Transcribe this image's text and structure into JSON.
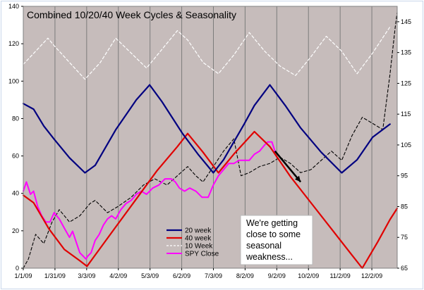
{
  "chart_data": {
    "type": "line",
    "title": "Combined 10/20/40 Week Cycles & Seasonality",
    "x_tick_labels": [
      "1/1/09",
      "1/31/09",
      "3/3/09",
      "4/2/09",
      "5/3/09",
      "6/2/09",
      "7/3/09",
      "8/2/09",
      "9/2/09",
      "10/2/09",
      "11/2/09",
      "12/2/09"
    ],
    "x_range_days": [
      0,
      364
    ],
    "y_left": {
      "min": 0,
      "max": 140,
      "ticks": [
        0,
        20,
        40,
        60,
        80,
        100,
        120,
        140
      ]
    },
    "y_right": {
      "min": 65,
      "max": 150,
      "ticks": [
        65,
        75,
        85,
        95,
        105,
        115,
        125,
        135,
        145
      ]
    },
    "series": [
      {
        "name": "20 week",
        "axis": "left",
        "color": "#000080",
        "style": "solid",
        "width": 2.2,
        "points": [
          [
            0,
            88
          ],
          [
            10,
            85
          ],
          [
            20,
            76
          ],
          [
            30,
            69
          ],
          [
            45,
            59
          ],
          [
            60,
            51
          ],
          [
            70,
            55
          ],
          [
            90,
            74
          ],
          [
            110,
            90
          ],
          [
            123,
            98
          ],
          [
            135,
            89
          ],
          [
            155,
            72
          ],
          [
            170,
            61
          ],
          [
            185,
            51
          ],
          [
            195,
            58
          ],
          [
            215,
            77
          ],
          [
            225,
            87
          ],
          [
            240,
            98
          ],
          [
            255,
            87
          ],
          [
            270,
            75
          ],
          [
            290,
            62
          ],
          [
            310,
            51
          ],
          [
            325,
            58
          ],
          [
            340,
            70
          ],
          [
            357,
            77
          ]
        ]
      },
      {
        "name": "40 week",
        "axis": "left",
        "color": "#e00000",
        "style": "solid",
        "width": 2.2,
        "points": [
          [
            0,
            39
          ],
          [
            10,
            35
          ],
          [
            25,
            21
          ],
          [
            40,
            10
          ],
          [
            55,
            4
          ],
          [
            62,
            1
          ],
          [
            70,
            7
          ],
          [
            90,
            22
          ],
          [
            110,
            37
          ],
          [
            130,
            52
          ],
          [
            150,
            65
          ],
          [
            160,
            72
          ],
          [
            175,
            62
          ],
          [
            190,
            51
          ],
          [
            205,
            61
          ],
          [
            225,
            73
          ],
          [
            240,
            65
          ],
          [
            260,
            49
          ],
          [
            280,
            35
          ],
          [
            300,
            21
          ],
          [
            320,
            7
          ],
          [
            330,
            0
          ],
          [
            345,
            14
          ],
          [
            357,
            26
          ],
          [
            364,
            32
          ]
        ]
      },
      {
        "name": "10 Week",
        "axis": "left",
        "color": "#ffffff",
        "style": "dashed",
        "width": 1.2,
        "points": [
          [
            0,
            109
          ],
          [
            12,
            116
          ],
          [
            24,
            123
          ],
          [
            30,
            119
          ],
          [
            45,
            110
          ],
          [
            60,
            101
          ],
          [
            75,
            110
          ],
          [
            90,
            123
          ],
          [
            105,
            115
          ],
          [
            120,
            107
          ],
          [
            135,
            117
          ],
          [
            150,
            127
          ],
          [
            160,
            122
          ],
          [
            175,
            110
          ],
          [
            190,
            104
          ],
          [
            205,
            114
          ],
          [
            220,
            126
          ],
          [
            235,
            116
          ],
          [
            250,
            108
          ],
          [
            265,
            103
          ],
          [
            280,
            113
          ],
          [
            295,
            124
          ],
          [
            310,
            116
          ],
          [
            325,
            104
          ],
          [
            340,
            115
          ],
          [
            357,
            129
          ]
        ]
      },
      {
        "name": "SPY Close",
        "axis": "right",
        "color": "#ff00ff",
        "style": "solid",
        "width": 2.0,
        "points": [
          [
            0,
            90
          ],
          [
            3,
            93
          ],
          [
            7,
            89
          ],
          [
            10,
            90
          ],
          [
            14,
            85
          ],
          [
            18,
            82
          ],
          [
            22,
            80
          ],
          [
            26,
            80
          ],
          [
            30,
            83
          ],
          [
            35,
            81
          ],
          [
            40,
            78
          ],
          [
            45,
            75
          ],
          [
            48,
            77
          ],
          [
            52,
            73
          ],
          [
            55,
            70
          ],
          [
            58,
            69
          ],
          [
            61,
            68
          ],
          [
            63,
            69
          ],
          [
            66,
            70
          ],
          [
            70,
            74
          ],
          [
            74,
            76
          ],
          [
            78,
            79
          ],
          [
            82,
            81
          ],
          [
            86,
            82
          ],
          [
            90,
            81
          ],
          [
            95,
            84
          ],
          [
            100,
            86
          ],
          [
            105,
            87
          ],
          [
            110,
            89
          ],
          [
            115,
            90
          ],
          [
            120,
            89
          ],
          [
            126,
            91
          ],
          [
            132,
            92
          ],
          [
            138,
            94
          ],
          [
            144,
            94
          ],
          [
            148,
            93
          ],
          [
            152,
            91
          ],
          [
            157,
            90
          ],
          [
            162,
            91
          ],
          [
            168,
            90
          ],
          [
            174,
            88
          ],
          [
            180,
            88
          ],
          [
            185,
            92
          ],
          [
            190,
            95
          ],
          [
            195,
            97
          ],
          [
            200,
            99
          ],
          [
            205,
            99
          ],
          [
            210,
            100
          ],
          [
            215,
            100
          ],
          [
            220,
            100
          ],
          [
            225,
            102
          ],
          [
            230,
            103
          ],
          [
            235,
            105
          ],
          [
            238,
            106
          ],
          [
            242,
            106
          ],
          [
            245,
            103
          ]
        ]
      },
      {
        "name": "Seasonality",
        "axis": "right",
        "color": "#000000",
        "style": "dashed",
        "width": 1.1,
        "legend": false,
        "points": [
          [
            0,
            65
          ],
          [
            5,
            68
          ],
          [
            12,
            76
          ],
          [
            20,
            73
          ],
          [
            28,
            80
          ],
          [
            35,
            84
          ],
          [
            45,
            80
          ],
          [
            55,
            82
          ],
          [
            65,
            86
          ],
          [
            70,
            87
          ],
          [
            82,
            83
          ],
          [
            92,
            85
          ],
          [
            105,
            88
          ],
          [
            117,
            92
          ],
          [
            128,
            94
          ],
          [
            140,
            92
          ],
          [
            150,
            95
          ],
          [
            160,
            98
          ],
          [
            168,
            95
          ],
          [
            175,
            93
          ],
          [
            185,
            98
          ],
          [
            195,
            103
          ],
          [
            205,
            107
          ],
          [
            212,
            95
          ],
          [
            220,
            96
          ],
          [
            230,
            98
          ],
          [
            240,
            99
          ],
          [
            250,
            101
          ],
          [
            260,
            99
          ],
          [
            270,
            96
          ],
          [
            280,
            97
          ],
          [
            290,
            100
          ],
          [
            300,
            103
          ],
          [
            310,
            100
          ],
          [
            320,
            108
          ],
          [
            330,
            114
          ],
          [
            340,
            112
          ],
          [
            350,
            110
          ],
          [
            357,
            128
          ],
          [
            362,
            143
          ],
          [
            364,
            148
          ]
        ]
      }
    ],
    "arrow": {
      "from": [
        245,
        103
      ],
      "to": [
        270,
        93
      ],
      "axis": "right"
    },
    "legend": [
      "20 week",
      "40 week",
      "10 Week",
      "SPY Close"
    ],
    "legend_position": "bottom-center",
    "annotation_lines": [
      "We're getting",
      "close to some",
      "seasonal",
      "weakness..."
    ],
    "background_color": "#c6bcbb",
    "gridline_color": "#7c7c7c"
  }
}
